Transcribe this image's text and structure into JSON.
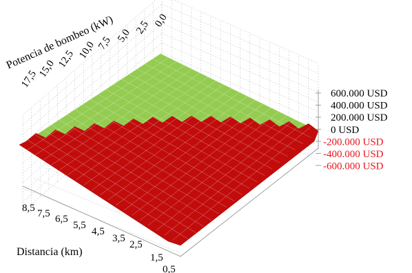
{
  "chart_data": {
    "type": "surface3d",
    "title": "",
    "x_axis": {
      "label": "Potencia de bombeo (kW)",
      "ticks": [
        "17,5",
        "15,0",
        "12,5",
        "10,0",
        "7,5",
        "5,0",
        "2,5",
        "0,0"
      ],
      "range": [
        0,
        17.5
      ]
    },
    "y_axis": {
      "label": "Distancia (km)",
      "ticks": [
        "8,5",
        "7,5",
        "6,5",
        "5,5",
        "4,5",
        "3,5",
        "2,5",
        "1,5",
        "0,5"
      ],
      "range": [
        0.5,
        8.5
      ]
    },
    "z_axis": {
      "label": "",
      "ticks": [
        "600.000 USD",
        "400.000 USD",
        "200.000 USD",
        "0 USD",
        "-200.000 USD",
        "-400.000 USD",
        "-600.000 USD"
      ],
      "positive_color": "#000000",
      "negative_color": "#e8141a"
    },
    "surface_colors": {
      "positive": "#94cc52",
      "negative": "#c20c0c"
    },
    "grid": true,
    "legend": "none"
  }
}
